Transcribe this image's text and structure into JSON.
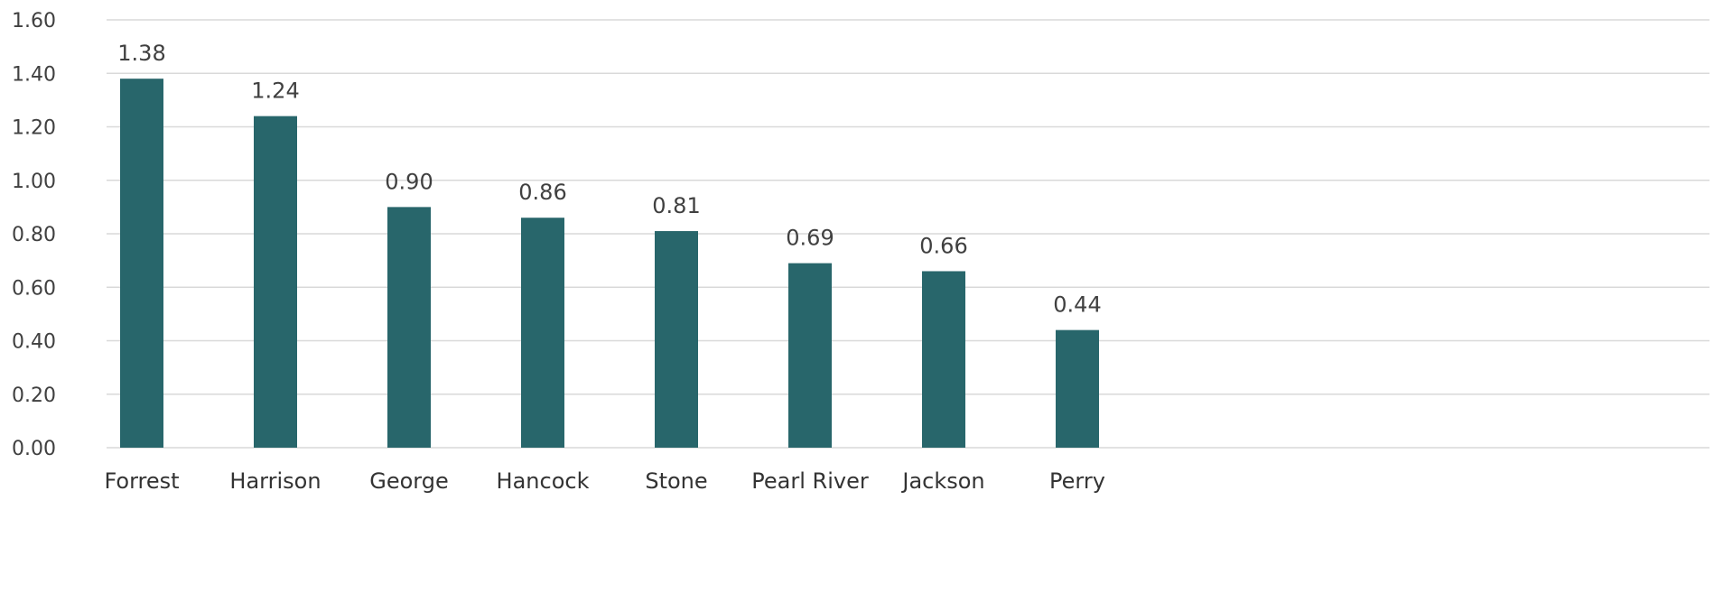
{
  "chart_data": {
    "type": "bar",
    "categories": [
      "Forrest",
      "Harrison",
      "George",
      "Hancock",
      "Stone",
      "Pearl River",
      "Jackson",
      "Perry"
    ],
    "values": [
      1.38,
      1.24,
      0.9,
      0.86,
      0.81,
      0.69,
      0.66,
      0.44
    ],
    "value_labels": [
      "1.38",
      "1.24",
      "0.90",
      "0.86",
      "0.81",
      "0.69",
      "0.66",
      "0.44"
    ],
    "y_ticks": [
      0.0,
      0.2,
      0.4,
      0.6,
      0.8,
      1.0,
      1.2,
      1.4,
      1.6
    ],
    "y_tick_labels": [
      "0.00",
      "0.20",
      "0.40",
      "0.60",
      "0.80",
      "1.00",
      "1.20",
      "1.40",
      "1.60"
    ],
    "ylim": [
      0,
      1.6
    ],
    "title": "",
    "xlabel": "",
    "ylabel": "",
    "grid": true,
    "legend": "none",
    "colors": {
      "bar": "#28666b",
      "grid": "#d9d9d9",
      "text": "#404040"
    }
  }
}
